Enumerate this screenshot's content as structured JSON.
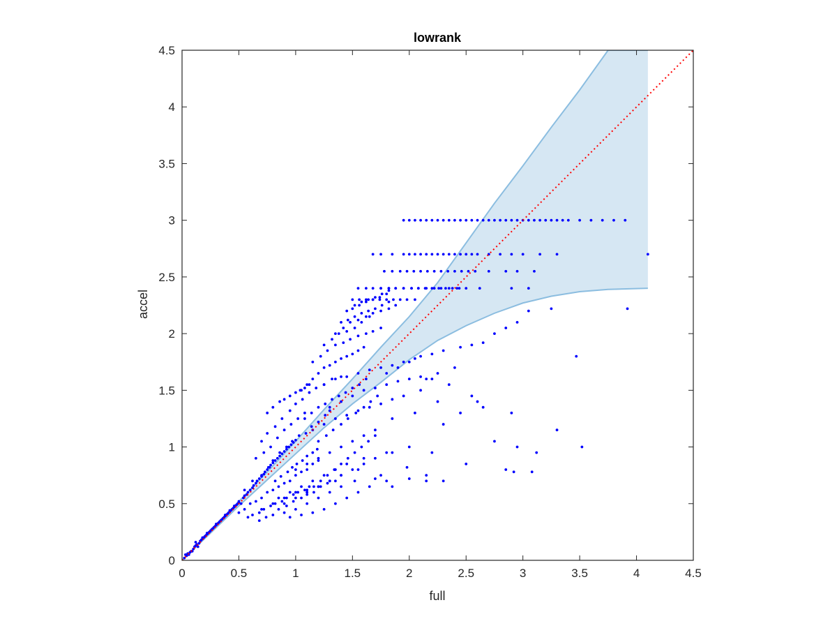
{
  "chart_data": {
    "type": "scatter",
    "title": "lowrank",
    "xlabel": "full",
    "ylabel": "accel",
    "xlim": [
      0,
      4.5
    ],
    "ylim": [
      0,
      4.5
    ],
    "xticks": [
      "0",
      "0.5",
      "1",
      "1.5",
      "2",
      "2.5",
      "3",
      "3.5",
      "4",
      "4.5"
    ],
    "yticks": [
      "0",
      "0.5",
      "1",
      "1.5",
      "2",
      "2.5",
      "3",
      "3.5",
      "4",
      "4.5"
    ],
    "grid": false,
    "band": {
      "x": [
        0,
        0.25,
        0.5,
        0.75,
        1.0,
        1.25,
        1.5,
        1.75,
        2.0,
        2.25,
        2.5,
        2.75,
        3.0,
        3.25,
        3.5,
        3.75,
        4.1
      ],
      "upper": [
        0,
        0.25,
        0.52,
        0.78,
        1.05,
        1.33,
        1.6,
        1.88,
        2.15,
        2.45,
        2.8,
        3.15,
        3.48,
        3.82,
        4.15,
        4.5,
        4.5
      ],
      "lower": [
        0,
        0.24,
        0.48,
        0.71,
        0.94,
        1.17,
        1.38,
        1.57,
        1.77,
        1.94,
        2.07,
        2.18,
        2.27,
        2.33,
        2.37,
        2.39,
        2.4
      ],
      "fill_color": "#d6e7f3",
      "edge_color": "#8bbde0"
    },
    "reference_line": {
      "x": [
        0,
        4.5
      ],
      "y": [
        0,
        4.5
      ],
      "color": "#ff0000",
      "style": "dotted"
    },
    "marker_color": "#0000ff",
    "series": [
      {
        "x": [
          0.02,
          0.04,
          0.05,
          0.07,
          0.08,
          0.1,
          0.11,
          0.12,
          0.13,
          0.15,
          0.16,
          0.17,
          0.18,
          0.19,
          0.2,
          0.21,
          0.22,
          0.23,
          0.24,
          0.25,
          0.26,
          0.27,
          0.28,
          0.29,
          0.3,
          0.31,
          0.32,
          0.33,
          0.34,
          0.35,
          0.36,
          0.37,
          0.38,
          0.39,
          0.4,
          0.41,
          0.42,
          0.43,
          0.44,
          0.45,
          0.46,
          0.47,
          0.48,
          0.49,
          0.5,
          0.03,
          0.06,
          0.09,
          0.14,
          0.12,
          0.18,
          0.22,
          0.26,
          0.3,
          0.34,
          0.38,
          0.42,
          0.46,
          0.5,
          0.52,
          0.54,
          0.55,
          0.57,
          0.58,
          0.6,
          0.62,
          0.63,
          0.65,
          0.66,
          0.68,
          0.7,
          0.72,
          0.73,
          0.75,
          0.77,
          0.78,
          0.8,
          0.82,
          0.84,
          0.86,
          0.88,
          0.9,
          0.92,
          0.94,
          0.96,
          0.98,
          1.0,
          0.5,
          0.55,
          0.6,
          0.65,
          0.7,
          0.75,
          0.8,
          0.85,
          0.9,
          0.95,
          1.0,
          1.05,
          1.1,
          1.15,
          1.2,
          0.58,
          0.62,
          0.68,
          0.72,
          0.78,
          0.82,
          0.88,
          0.92,
          0.98,
          1.02,
          1.08,
          1.12,
          0.55,
          0.62,
          0.7,
          0.76,
          0.8,
          0.86,
          0.92,
          0.97,
          1.03,
          1.09,
          1.14,
          1.2,
          1.26,
          1.3,
          0.65,
          0.72,
          0.78,
          0.84,
          0.9,
          0.96,
          1.02,
          1.08,
          0.7,
          0.75,
          0.82,
          0.88,
          0.95,
          1.0,
          1.06,
          1.12,
          1.18,
          1.25,
          1.32,
          1.4,
          0.68,
          0.74,
          0.8,
          0.85,
          0.92,
          0.98,
          1.05,
          1.1,
          1.16,
          1.22,
          1.28,
          1.35,
          0.75,
          0.8,
          0.86,
          0.9,
          0.95,
          1.0,
          1.04,
          1.08,
          1.12,
          0.82,
          0.87,
          0.93,
          0.97,
          1.01,
          1.06,
          1.1,
          1.15,
          1.19,
          1.05,
          1.1,
          1.15,
          1.2,
          1.25,
          1.3,
          1.35,
          1.4,
          1.45,
          1.5,
          1.55,
          1.6,
          1.08,
          1.14,
          1.2,
          1.26,
          1.32,
          1.38,
          1.44,
          1.5,
          1.56,
          1.62,
          1.1,
          1.16,
          1.22,
          1.28,
          1.34,
          1.4,
          1.46,
          1.52,
          1.58,
          1.64,
          1.7,
          1.15,
          1.22,
          1.28,
          1.35,
          1.42,
          1.48,
          1.55,
          1.62,
          1.68,
          1.75,
          1.2,
          1.27,
          1.33,
          1.4,
          1.46,
          1.53,
          1.6,
          1.66,
          1.72,
          1.25,
          1.32,
          1.38,
          1.45,
          1.52,
          1.58,
          1.65,
          1.35,
          1.42,
          1.48,
          1.55,
          1.62,
          1.68,
          1.75,
          1.82,
          1.88,
          1.4,
          1.46,
          1.52,
          1.58,
          1.64,
          1.7,
          1.76,
          1.82,
          1.45,
          1.5,
          1.56,
          1.62,
          1.68,
          1.74,
          1.8,
          1.52,
          1.58,
          1.64,
          1.7,
          1.76,
          1.82,
          1.95,
          2.0,
          2.05,
          2.1,
          2.15,
          2.2,
          2.25,
          2.3,
          2.35,
          2.4,
          2.45,
          2.5,
          2.55,
          2.6,
          2.65,
          2.7,
          2.75,
          2.8,
          2.85,
          2.9,
          2.95,
          3.0,
          3.05,
          3.1,
          3.15,
          3.2,
          3.25,
          3.3,
          3.35,
          3.4,
          3.5,
          3.6,
          3.7,
          3.8,
          3.9,
          1.68,
          1.75,
          1.85,
          1.95,
          2.0,
          2.05,
          2.1,
          2.15,
          2.2,
          2.25,
          2.3,
          2.35,
          2.4,
          2.45,
          2.5,
          2.55,
          2.6,
          2.7,
          2.8,
          2.9,
          3.0,
          3.15,
          3.3,
          4.1,
          1.78,
          1.85,
          1.92,
          1.98,
          2.04,
          2.1,
          2.16,
          2.22,
          2.28,
          2.34,
          2.4,
          2.46,
          2.52,
          2.58,
          2.7,
          2.85,
          2.95,
          3.1,
          1.75,
          1.82,
          1.88,
          1.95,
          2.02,
          2.08,
          2.14,
          2.2,
          2.26,
          2.32,
          2.38,
          2.44,
          2.5,
          2.62,
          2.9,
          3.05,
          1.55,
          1.62,
          1.68,
          1.75,
          1.82,
          1.88,
          1.95,
          2.02,
          2.08,
          2.15,
          2.22,
          2.28,
          2.35,
          2.42,
          1.5,
          1.56,
          1.62,
          1.68,
          1.74,
          1.8,
          1.86,
          1.92,
          1.98,
          2.05,
          1.8,
          1.9,
          2.0,
          2.1,
          2.2,
          2.3,
          2.45,
          2.55,
          2.65,
          2.75,
          2.85,
          2.95,
          3.05,
          3.25,
          3.92,
          1.25,
          1.35,
          1.45,
          1.55,
          1.65,
          1.75,
          1.85,
          1.95,
          2.05,
          2.15,
          2.25,
          2.4,
          1.3,
          1.4,
          1.5,
          1.6,
          1.7,
          1.8,
          1.9,
          2.0,
          2.1,
          2.2,
          2.35,
          2.55,
          2.6,
          1.15,
          1.25,
          1.35,
          1.45,
          1.55,
          1.65,
          1.75,
          1.85,
          1.95,
          2.1,
          2.25,
          2.45,
          2.65,
          2.9,
          3.3,
          3.52,
          1.0,
          1.1,
          1.2,
          1.3,
          1.4,
          1.5,
          1.6,
          1.7,
          1.85,
          2.05,
          2.3,
          2.75,
          2.95,
          3.12,
          0.9,
          1.0,
          1.1,
          1.2,
          1.3,
          1.4,
          1.5,
          1.6,
          1.7,
          1.85,
          2.0,
          2.2,
          2.5,
          2.85,
          0.95,
          1.05,
          1.15,
          1.25,
          1.35,
          1.45,
          1.55,
          1.65,
          1.8,
          2.0,
          2.15,
          2.3,
          0.7,
          0.8,
          0.9,
          1.0,
          1.1,
          1.2,
          1.3,
          1.4,
          1.55,
          1.75,
          1.98,
          2.15,
          0.85,
          0.95,
          1.05,
          1.15,
          1.25,
          1.35,
          1.45,
          1.6,
          1.8,
          0.9,
          1.0,
          1.1,
          1.2,
          1.3,
          1.4,
          1.52,
          1.7,
          1.85,
          3.47,
          2.92,
          3.08
        ],
        "y": [
          0.02,
          0.04,
          0.06,
          0.07,
          0.08,
          0.1,
          0.12,
          0.13,
          0.14,
          0.15,
          0.17,
          0.18,
          0.19,
          0.2,
          0.21,
          0.22,
          0.23,
          0.24,
          0.25,
          0.26,
          0.27,
          0.28,
          0.29,
          0.3,
          0.31,
          0.32,
          0.33,
          0.34,
          0.35,
          0.36,
          0.37,
          0.38,
          0.39,
          0.4,
          0.41,
          0.42,
          0.43,
          0.44,
          0.45,
          0.46,
          0.47,
          0.48,
          0.49,
          0.5,
          0.51,
          0.05,
          0.05,
          0.08,
          0.12,
          0.16,
          0.2,
          0.24,
          0.27,
          0.32,
          0.35,
          0.4,
          0.44,
          0.48,
          0.52,
          0.5,
          0.55,
          0.57,
          0.58,
          0.6,
          0.62,
          0.64,
          0.66,
          0.68,
          0.7,
          0.72,
          0.74,
          0.76,
          0.78,
          0.8,
          0.82,
          0.84,
          0.86,
          0.88,
          0.9,
          0.92,
          0.94,
          0.96,
          0.98,
          1.0,
          1.02,
          1.04,
          1.06,
          0.42,
          0.45,
          0.5,
          0.52,
          0.55,
          0.6,
          0.62,
          0.65,
          0.68,
          0.7,
          0.75,
          0.78,
          0.8,
          0.85,
          0.88,
          0.38,
          0.4,
          0.42,
          0.45,
          0.48,
          0.5,
          0.52,
          0.55,
          0.58,
          0.6,
          0.62,
          0.65,
          0.62,
          0.7,
          0.75,
          0.82,
          0.88,
          0.95,
          1.0,
          1.05,
          1.1,
          1.12,
          1.18,
          1.22,
          1.28,
          1.32,
          0.9,
          0.95,
          1.0,
          1.08,
          1.15,
          1.2,
          1.25,
          1.3,
          1.05,
          1.12,
          1.18,
          1.25,
          1.32,
          1.38,
          1.42,
          1.48,
          1.52,
          1.55,
          1.6,
          1.62,
          0.35,
          0.38,
          0.4,
          0.45,
          0.48,
          0.52,
          0.55,
          0.58,
          0.6,
          0.65,
          0.68,
          0.7,
          1.3,
          1.35,
          1.4,
          1.42,
          1.45,
          1.48,
          1.5,
          1.52,
          1.55,
          0.7,
          0.74,
          0.78,
          0.82,
          0.85,
          0.88,
          0.92,
          0.95,
          0.98,
          1.5,
          1.55,
          1.6,
          1.65,
          1.7,
          1.72,
          1.75,
          1.78,
          1.8,
          1.82,
          1.85,
          1.88,
          1.25,
          1.3,
          1.35,
          1.38,
          1.42,
          1.45,
          1.48,
          1.52,
          1.55,
          1.6,
          0.6,
          0.65,
          0.7,
          0.75,
          0.8,
          0.85,
          0.9,
          0.95,
          1.0,
          1.05,
          1.1,
          1.75,
          1.8,
          1.85,
          1.9,
          1.92,
          1.95,
          1.98,
          2.0,
          2.02,
          2.05,
          1.05,
          1.1,
          1.15,
          1.2,
          1.25,
          1.3,
          1.35,
          1.4,
          1.45,
          1.9,
          1.95,
          2.0,
          2.02,
          2.05,
          2.1,
          2.15,
          2.0,
          2.05,
          2.1,
          2.12,
          2.15,
          2.18,
          2.2,
          2.22,
          2.25,
          2.1,
          2.12,
          2.15,
          2.18,
          2.2,
          2.22,
          2.25,
          2.28,
          2.2,
          2.22,
          2.25,
          2.28,
          2.3,
          2.32,
          2.35,
          2.25,
          2.28,
          2.3,
          2.32,
          2.35,
          2.38,
          3.0,
          3.0,
          3.0,
          3.0,
          3.0,
          3.0,
          3.0,
          3.0,
          3.0,
          3.0,
          3.0,
          3.0,
          3.0,
          3.0,
          3.0,
          3.0,
          3.0,
          3.0,
          3.0,
          3.0,
          3.0,
          3.0,
          3.0,
          3.0,
          3.0,
          3.0,
          3.0,
          3.0,
          3.0,
          3.0,
          3.0,
          3.0,
          3.0,
          3.0,
          3.0,
          2.7,
          2.7,
          2.7,
          2.7,
          2.7,
          2.7,
          2.7,
          2.7,
          2.7,
          2.7,
          2.7,
          2.7,
          2.7,
          2.7,
          2.7,
          2.7,
          2.7,
          2.7,
          2.7,
          2.7,
          2.7,
          2.7,
          2.7,
          2.7,
          2.55,
          2.55,
          2.55,
          2.55,
          2.55,
          2.55,
          2.55,
          2.55,
          2.55,
          2.55,
          2.55,
          2.55,
          2.55,
          2.55,
          2.55,
          2.55,
          2.55,
          2.55,
          2.4,
          2.4,
          2.4,
          2.4,
          2.4,
          2.4,
          2.4,
          2.4,
          2.4,
          2.4,
          2.4,
          2.4,
          2.4,
          2.4,
          2.4,
          2.4,
          2.4,
          2.4,
          2.4,
          2.4,
          2.4,
          2.4,
          2.4,
          2.4,
          2.4,
          2.4,
          2.4,
          2.4,
          2.4,
          2.4,
          2.3,
          2.3,
          2.3,
          2.3,
          2.3,
          2.3,
          2.3,
          2.3,
          2.3,
          2.3,
          1.65,
          1.7,
          1.75,
          1.8,
          1.82,
          1.85,
          1.88,
          1.9,
          1.92,
          2.0,
          2.05,
          2.1,
          2.2,
          2.22,
          2.22,
          1.55,
          1.6,
          1.62,
          1.65,
          1.68,
          1.7,
          1.72,
          1.75,
          1.78,
          1.6,
          1.65,
          1.7,
          1.35,
          1.4,
          1.45,
          1.5,
          1.52,
          1.55,
          1.58,
          1.6,
          1.62,
          1.6,
          1.55,
          1.45,
          1.4,
          1.15,
          1.2,
          1.25,
          1.28,
          1.32,
          1.35,
          1.38,
          1.42,
          1.45,
          1.5,
          1.4,
          1.3,
          1.35,
          1.3,
          1.15,
          1.0,
          0.8,
          0.85,
          0.9,
          0.95,
          1.0,
          1.05,
          1.1,
          1.15,
          1.25,
          1.3,
          1.2,
          1.05,
          1.0,
          0.95,
          0.5,
          0.55,
          0.6,
          0.65,
          0.7,
          0.75,
          0.8,
          0.85,
          0.9,
          0.95,
          1.0,
          0.95,
          0.85,
          0.8,
          0.38,
          0.4,
          0.42,
          0.45,
          0.5,
          0.55,
          0.6,
          0.65,
          0.7,
          0.72,
          0.75,
          0.7,
          0.45,
          0.5,
          0.55,
          0.6,
          0.62,
          0.65,
          0.7,
          0.75,
          0.8,
          0.75,
          0.82,
          0.7,
          0.55,
          0.6,
          0.65,
          0.7,
          0.75,
          0.8,
          0.85,
          0.9,
          0.95,
          0.42,
          0.45,
          0.5,
          0.55,
          0.6,
          0.65,
          0.7,
          0.72,
          0.65,
          1.8,
          0.78,
          0.78
        ]
      }
    ]
  }
}
